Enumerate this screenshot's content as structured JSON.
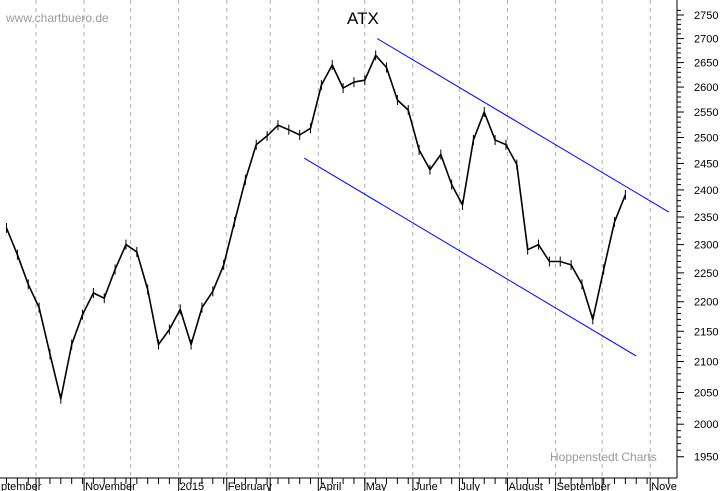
{
  "watermark": "www.chartbuero.de",
  "credit": "Hoppenstedt Charts",
  "chart_data": {
    "type": "line",
    "title": "ATX",
    "xlabel": "",
    "ylabel": "",
    "y_scale": "log",
    "ylim": [
      1950,
      2750
    ],
    "y_ticks": [
      1950,
      2000,
      2050,
      2100,
      2150,
      2200,
      2250,
      2300,
      2350,
      2400,
      2450,
      2500,
      2550,
      2600,
      2650,
      2700,
      2750
    ],
    "y_axis_side": "right",
    "grid": "vertical dashed at month starts",
    "x_tick_labels": [
      {
        "date": "2014-09-01",
        "label": "ptember"
      },
      {
        "date": "2014-11-01",
        "label": "November"
      },
      {
        "date": "2015-01-01",
        "label": "2015"
      },
      {
        "date": "2015-02-01",
        "label": "February"
      },
      {
        "date": "2015-04-01",
        "label": "April"
      },
      {
        "date": "2015-05-01",
        "label": "May"
      },
      {
        "date": "2015-06-01",
        "label": "June"
      },
      {
        "date": "2015-07-01",
        "label": "July"
      },
      {
        "date": "2015-08-01",
        "label": "August"
      },
      {
        "date": "2015-09-01",
        "label": "September"
      },
      {
        "date": "2015-11-01",
        "label": "Nove"
      }
    ],
    "month_gridlines": [
      "2014-10-01",
      "2014-11-01",
      "2014-12-01",
      "2015-01-01",
      "2015-02-01",
      "2015-03-01",
      "2015-04-01",
      "2015-05-01",
      "2015-06-01",
      "2015-07-01",
      "2015-08-01",
      "2015-09-01",
      "2015-10-01",
      "2015-11-01"
    ],
    "series": [
      {
        "color": "#000000",
        "points": [
          [
            "2014-09-12",
            2330
          ],
          [
            "2014-09-19",
            2282
          ],
          [
            "2014-09-26",
            2230
          ],
          [
            "2014-10-03",
            2190
          ],
          [
            "2014-10-10",
            2112
          ],
          [
            "2014-10-17",
            2040
          ],
          [
            "2014-10-24",
            2128
          ],
          [
            "2014-10-31",
            2178
          ],
          [
            "2014-11-07",
            2215
          ],
          [
            "2014-11-14",
            2206
          ],
          [
            "2014-11-21",
            2256
          ],
          [
            "2014-11-28",
            2300
          ],
          [
            "2014-12-05",
            2287
          ],
          [
            "2014-12-12",
            2221
          ],
          [
            "2014-12-19",
            2128
          ],
          [
            "2014-12-26",
            2153
          ],
          [
            "2015-01-02",
            2187
          ],
          [
            "2015-01-09",
            2128
          ],
          [
            "2015-01-16",
            2190
          ],
          [
            "2015-01-23",
            2218
          ],
          [
            "2015-01-30",
            2264
          ],
          [
            "2015-02-06",
            2341
          ],
          [
            "2015-02-13",
            2419
          ],
          [
            "2015-02-20",
            2486
          ],
          [
            "2015-02-27",
            2503
          ],
          [
            "2015-03-06",
            2524
          ],
          [
            "2015-03-13",
            2515
          ],
          [
            "2015-03-20",
            2505
          ],
          [
            "2015-03-27",
            2518
          ],
          [
            "2015-04-03",
            2604
          ],
          [
            "2015-04-10",
            2645
          ],
          [
            "2015-04-17",
            2598
          ],
          [
            "2015-04-24",
            2610
          ],
          [
            "2015-05-01",
            2614
          ],
          [
            "2015-05-08",
            2665
          ],
          [
            "2015-05-15",
            2640
          ],
          [
            "2015-05-22",
            2574
          ],
          [
            "2015-05-29",
            2554
          ],
          [
            "2015-06-05",
            2476
          ],
          [
            "2015-06-12",
            2438
          ],
          [
            "2015-06-19",
            2467
          ],
          [
            "2015-06-26",
            2410
          ],
          [
            "2015-07-03",
            2372
          ],
          [
            "2015-07-10",
            2495
          ],
          [
            "2015-07-17",
            2550
          ],
          [
            "2015-07-24",
            2495
          ],
          [
            "2015-07-31",
            2486
          ],
          [
            "2015-08-07",
            2448
          ],
          [
            "2015-08-14",
            2291
          ],
          [
            "2015-08-21",
            2300
          ],
          [
            "2015-08-28",
            2270
          ],
          [
            "2015-09-04",
            2270
          ],
          [
            "2015-09-11",
            2264
          ],
          [
            "2015-09-18",
            2230
          ],
          [
            "2015-09-25",
            2170
          ],
          [
            "2015-10-02",
            2256
          ],
          [
            "2015-10-09",
            2341
          ],
          [
            "2015-10-16",
            2391
          ]
        ]
      }
    ],
    "trend_lines": [
      {
        "color": "#0000ff",
        "from": [
          "2015-05-09",
          2700
        ],
        "to": [
          "2015-11-13",
          2359
        ]
      },
      {
        "color": "#0000ff",
        "from": [
          "2015-03-23",
          2460
        ],
        "to": [
          "2015-10-23",
          2109
        ]
      }
    ]
  }
}
